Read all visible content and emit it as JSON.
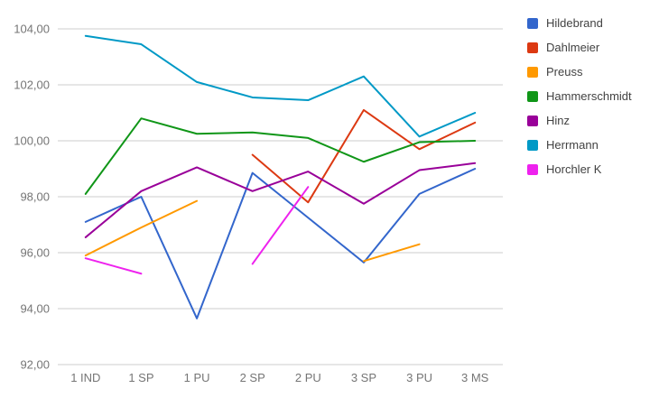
{
  "chart_data": {
    "type": "line",
    "title": "",
    "xlabel": "",
    "ylabel": "",
    "categories": [
      "1 IND",
      "1 SP",
      "1 PU",
      "2 SP",
      "2 PU",
      "3 SP",
      "3 PU",
      "3 MS"
    ],
    "series": [
      {
        "name": "Hildebrand",
        "color": "#3366cc",
        "values": [
          97.1,
          98.0,
          93.65,
          98.85,
          97.25,
          95.65,
          98.1,
          99.0
        ]
      },
      {
        "name": "Dahlmeier",
        "color": "#dc3912",
        "values": [
          null,
          null,
          null,
          99.5,
          97.8,
          101.1,
          99.7,
          100.65
        ]
      },
      {
        "name": "Preuss",
        "color": "#ff9900",
        "values": [
          95.9,
          96.9,
          97.85,
          null,
          null,
          95.7,
          96.3,
          null
        ]
      },
      {
        "name": "Hammerschmidt",
        "color": "#109618",
        "values": [
          98.1,
          100.8,
          100.25,
          100.3,
          100.1,
          99.25,
          99.95,
          100.0
        ]
      },
      {
        "name": "Hinz",
        "color": "#990099",
        "values": [
          96.55,
          98.2,
          99.05,
          98.2,
          98.9,
          97.75,
          98.95,
          99.2
        ]
      },
      {
        "name": "Herrmann",
        "color": "#0099c6",
        "values": [
          103.75,
          103.45,
          102.1,
          101.55,
          101.45,
          102.3,
          100.15,
          101.0
        ]
      },
      {
        "name": "Horchler K",
        "color": "#ee22ee",
        "values": [
          95.8,
          95.25,
          null,
          95.6,
          98.35,
          null,
          null,
          null
        ]
      }
    ],
    "ylim": [
      92,
      104
    ],
    "ytick_step": 2,
    "y_tick_labels": [
      "92,00",
      "94,00",
      "96,00",
      "98,00",
      "100,00",
      "102,00",
      "104,00"
    ],
    "grid": true,
    "legend_position": "right"
  },
  "colors": {
    "background": "#ffffff",
    "grid": "#cccccc",
    "axis_text": "#757575",
    "legend_text": "#424242"
  }
}
